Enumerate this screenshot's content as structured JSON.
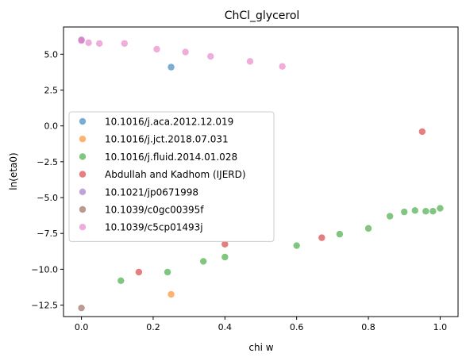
{
  "chart_data": {
    "type": "scatter",
    "title": "ChCl_glycerol",
    "xlabel": "chi w",
    "ylabel": "ln(eta0)",
    "xlim": [
      -0.05,
      1.05
    ],
    "ylim": [
      -13.3,
      6.9
    ],
    "x_ticks": [
      "0.0",
      "0.2",
      "0.4",
      "0.6",
      "0.8",
      "1.0"
    ],
    "y_ticks": [
      "−12.5",
      "−10.0",
      "−7.5",
      "−5.0",
      "−2.5",
      "0.0",
      "2.5",
      "5.0"
    ],
    "grid": false,
    "legend_position": "center-left",
    "series": [
      {
        "name": "10.1016/j.aca.2012.12.019",
        "color": "#1f77b4",
        "points": [
          [
            0.25,
            4.1
          ]
        ]
      },
      {
        "name": "10.1016/j.jct.2018.07.031",
        "color": "#ff7f0e",
        "points": [
          [
            0.25,
            -11.75
          ]
        ]
      },
      {
        "name": "10.1016/j.fluid.2014.01.028",
        "color": "#2ca02c",
        "points": [
          [
            0.11,
            -10.8
          ],
          [
            0.24,
            -10.2
          ],
          [
            0.34,
            -9.45
          ],
          [
            0.4,
            -9.15
          ],
          [
            0.6,
            -8.35
          ],
          [
            0.72,
            -7.55
          ],
          [
            0.8,
            -7.15
          ],
          [
            0.86,
            -6.3
          ],
          [
            0.9,
            -6.0
          ],
          [
            0.93,
            -5.9
          ],
          [
            0.96,
            -5.95
          ],
          [
            0.98,
            -5.95
          ],
          [
            1.0,
            -5.75
          ]
        ]
      },
      {
        "name": "Abdullah and Kadhom (IJERD)",
        "color": "#d62728",
        "points": [
          [
            0.16,
            -10.2
          ],
          [
            0.4,
            -8.25
          ],
          [
            0.67,
            -7.8
          ],
          [
            0.95,
            -0.4
          ]
        ]
      },
      {
        "name": "10.1021/jp0671998",
        "color": "#9467bd",
        "points": [
          [
            0.0,
            6.0
          ]
        ]
      },
      {
        "name": "10.1039/c0gc00395f",
        "color": "#8c564b",
        "points": [
          [
            0.0,
            -12.7
          ]
        ]
      },
      {
        "name": "10.1039/c5cp01493j",
        "color": "#e377c2",
        "points": [
          [
            0.0,
            5.95
          ],
          [
            0.02,
            5.8
          ],
          [
            0.05,
            5.75
          ],
          [
            0.12,
            5.75
          ],
          [
            0.21,
            5.35
          ],
          [
            0.29,
            5.15
          ],
          [
            0.36,
            4.85
          ],
          [
            0.47,
            4.5
          ],
          [
            0.56,
            4.15
          ]
        ]
      }
    ]
  }
}
